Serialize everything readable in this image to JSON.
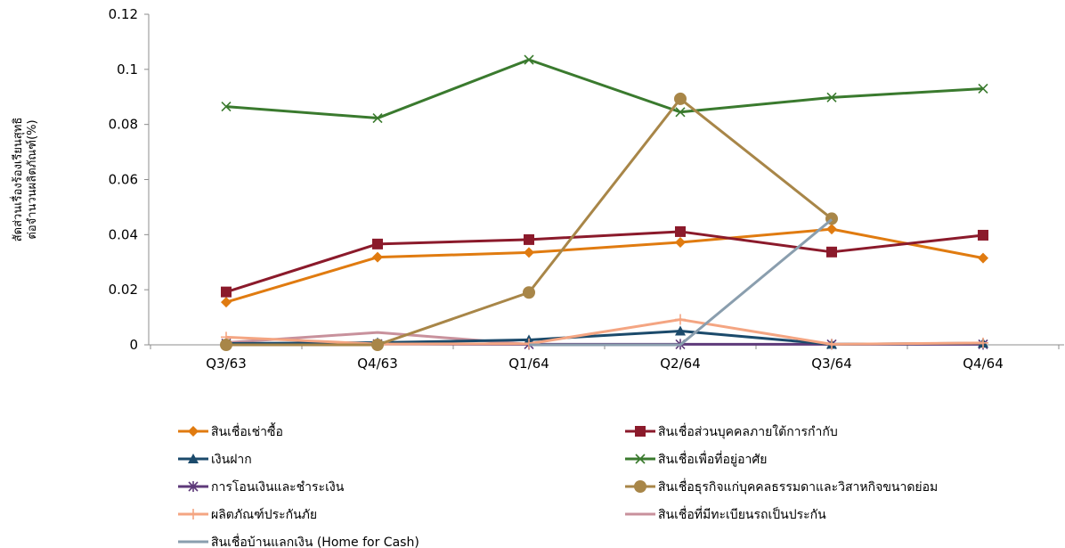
{
  "chart_data": {
    "type": "line",
    "title": "",
    "xlabel": "",
    "ylabel": "สัดส่วนเรื่องร้องเรียนสุทธิ ต่อจำนวนผลิตภัณฑ์(%)",
    "categories": [
      "Q3/63",
      "Q4/63",
      "Q1/64",
      "Q2/64",
      "Q3/64",
      "Q4/64"
    ],
    "ylim": [
      0,
      0.12
    ],
    "yticks": [
      0,
      0.02,
      0.04,
      0.06,
      0.08,
      0.1,
      0.12
    ],
    "ytick_labels": [
      "0",
      "0.02",
      "0.04",
      "0.06",
      "0.08",
      "0.1",
      "0.12"
    ],
    "grid": false,
    "legend_position": "bottom",
    "series": [
      {
        "name": "สินเชื่อเช่าซื้อ",
        "color": "#E07B10",
        "marker": "diamond",
        "values": [
          0.0155,
          0.0318,
          0.0335,
          0.0372,
          0.042,
          0.0315
        ]
      },
      {
        "name": "สินเชื่อส่วนบุคคลภายใต้การกำกับ",
        "color": "#8B1A2B",
        "marker": "square",
        "values": [
          0.0192,
          0.0366,
          0.0382,
          0.0411,
          0.0337,
          0.0398
        ]
      },
      {
        "name": "เงินฝาก",
        "color": "#1B4A6B",
        "marker": "triangle",
        "values": [
          0.0005,
          0.0008,
          0.0018,
          0.005,
          0.0002,
          0.0006
        ]
      },
      {
        "name": "สินเชื่อเพื่อที่อยู่อาศัย",
        "color": "#3A7A2E",
        "marker": "x",
        "values": [
          0.0865,
          0.0823,
          0.1035,
          0.0845,
          0.0898,
          0.093
        ]
      },
      {
        "name": "การโอนเงินและชำระเงิน",
        "color": "#5E3A7A",
        "marker": "asterisk",
        "values": [
          0.0005,
          0.0003,
          0.0002,
          0.0002,
          0.0002,
          0.0002
        ]
      },
      {
        "name": "สินเชื่อธุรกิจแก่บุคคลธรรมดาและวิสาหกิจขนาดย่อม",
        "color": "#A88648",
        "marker": "circle",
        "values": [
          0.0,
          0.0,
          0.019,
          0.0893,
          0.0458,
          null
        ]
      },
      {
        "name": "ผลิตภัณฑ์ประกันภัย",
        "color": "#F4A582",
        "marker": "plus",
        "values": [
          0.0028,
          0.0003,
          0.0004,
          0.0092,
          0.0002,
          0.0007
        ]
      },
      {
        "name": "สินเชื่อที่มีทะเบียนรถเป็นประกัน",
        "color": "#C8919C",
        "marker": "none",
        "values": [
          0.0008,
          0.0045,
          0.0002,
          null,
          null,
          null
        ]
      },
      {
        "name": "สินเชื่อบ้านแลกเงิน (Home for Cash)",
        "color": "#8A9EAE",
        "marker": "none",
        "values": [
          null,
          null,
          0.0,
          0.0,
          0.0455,
          null
        ]
      }
    ]
  }
}
